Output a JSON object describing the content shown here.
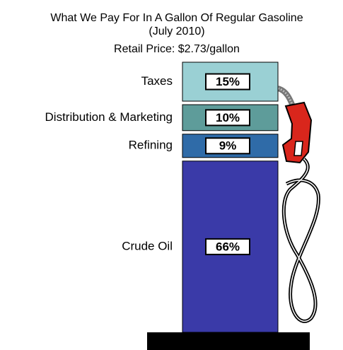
{
  "chart_data": {
    "type": "stacked-column",
    "title": "What We Pay For In A Gallon Of Regular Gasoline",
    "subtitle": "(July 2010)",
    "annotation": "Retail Price: $2.73/gallon",
    "categories": [
      "Taxes",
      "Distribution & Marketing",
      "Refining",
      "Crude Oil"
    ],
    "values": [
      15,
      10,
      9,
      66
    ],
    "value_labels": [
      "15%",
      "10%",
      "9%",
      "66%"
    ],
    "colors": [
      "#9ad0d4",
      "#5e9c9a",
      "#2f6ba8",
      "#3a3aa8"
    ]
  }
}
